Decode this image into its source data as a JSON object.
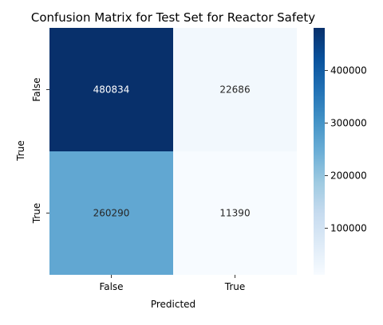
{
  "chart_data": {
    "type": "heatmap",
    "title": "Confusion Matrix for Test Set for Reactor Safety",
    "xlabel": "Predicted",
    "ylabel": "True",
    "x_categories": [
      "False",
      "True"
    ],
    "y_categories": [
      "False",
      "True"
    ],
    "values": [
      [
        480834,
        22686
      ],
      [
        260290,
        11390
      ]
    ],
    "colormap": "Blues",
    "color_range": [
      11390,
      480834
    ],
    "colorbar": {
      "ticks": [
        "100000",
        "200000",
        "300000",
        "400000"
      ],
      "tick_values": [
        100000,
        200000,
        300000,
        400000
      ]
    }
  }
}
